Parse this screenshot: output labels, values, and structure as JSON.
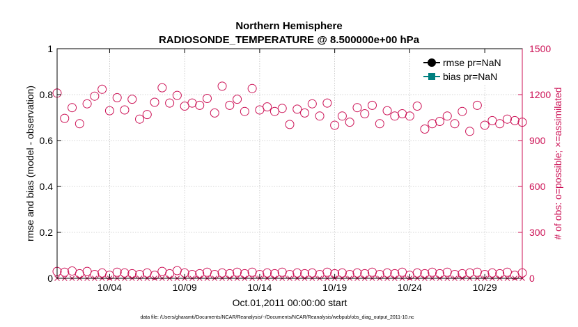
{
  "chart_data": {
    "type": "scatter",
    "title": "Northern Hemisphere",
    "subtitle": "RADIOSONDE_TEMPERATURE @ 8.500000e+00 hPa",
    "xlabel": "Oct.01,2011 00:00:00 start",
    "ylabel_left": "rmse and bias (model - observation)",
    "ylabel_right": "# of obs: o=possible; ×=assimilated",
    "footnote": "data file: /Users/gharamti/Documents/NCAR/Reanalysis/~/Documents/NCAR/Reanalysis/webpub/obs_diag_output_2011-10.nc",
    "x_range": [
      0.5,
      31.5
    ],
    "x_ticks": [
      {
        "day": 4,
        "label": "10/04"
      },
      {
        "day": 9,
        "label": "10/09"
      },
      {
        "day": 14,
        "label": "10/14"
      },
      {
        "day": 19,
        "label": "10/19"
      },
      {
        "day": 24,
        "label": "10/24"
      },
      {
        "day": 29,
        "label": "10/29"
      }
    ],
    "ylim_left": [
      0,
      1
    ],
    "yticks_left": [
      "0",
      "0.2",
      "0.4",
      "0.6",
      "0.8",
      "1"
    ],
    "ylim_right": [
      0,
      1500
    ],
    "yticks_right": [
      "0",
      "300",
      "600",
      "900",
      "1200",
      "1500"
    ],
    "grid": true,
    "legend_position": "top-right",
    "legend": [
      {
        "label": "rmse pr=NaN",
        "color": "#000000",
        "marker": "circle"
      },
      {
        "label": "bias pr=NaN",
        "color": "#008080",
        "marker": "square"
      }
    ],
    "series": [
      {
        "name": "rmse pr=NaN",
        "axis": "left",
        "values": []
      },
      {
        "name": "bias pr=NaN",
        "axis": "left",
        "values": []
      },
      {
        "axis": "right",
        "marker": "open-circle",
        "color": "#cc1155",
        "x": [
          0.5,
          1.0,
          1.5,
          2.0,
          2.5,
          3.0,
          3.5,
          4.0,
          4.5,
          5.0,
          5.5,
          6.0,
          6.5,
          7.0,
          7.5,
          8.0,
          8.5,
          9.0,
          9.5,
          10.0,
          10.5,
          11.0,
          11.5,
          12.0,
          12.5,
          13.0,
          13.5,
          14.0,
          14.5,
          15.0,
          15.5,
          16.0,
          16.5,
          17.0,
          17.5,
          18.0,
          18.5,
          19.0,
          19.5,
          20.0,
          20.5,
          21.0,
          21.5,
          22.0,
          22.5,
          23.0,
          23.5,
          24.0,
          24.5,
          25.0,
          25.5,
          26.0,
          26.5,
          27.0,
          27.5,
          28.0,
          28.5,
          29.0,
          29.5,
          30.0,
          30.5,
          31.0,
          31.5,
          0.5,
          1.0,
          1.5,
          2.0,
          2.5,
          3.0,
          3.5,
          4.0,
          4.5,
          5.0,
          5.5,
          6.0,
          6.5,
          7.0,
          7.5,
          8.0,
          8.5,
          9.0,
          9.5,
          10.0,
          10.5,
          11.0,
          11.5,
          12.0,
          12.5,
          13.0,
          13.5,
          14.0,
          14.5,
          15.0,
          15.5,
          16.0,
          16.5,
          17.0,
          17.5,
          18.0,
          18.5,
          19.0,
          19.5,
          20.0,
          20.5,
          21.0,
          21.5,
          22.0,
          22.5,
          23.0,
          23.5,
          24.0,
          24.5,
          25.0,
          25.5,
          26.0,
          26.5,
          27.0,
          27.5,
          28.0,
          28.5,
          29.0,
          29.5,
          30.0,
          30.5,
          31.0,
          31.5
        ],
        "values": [
          1210,
          1045,
          1115,
          1010,
          1140,
          1190,
          1235,
          1095,
          1180,
          1100,
          1170,
          1040,
          1070,
          1150,
          1245,
          1145,
          1195,
          1125,
          1145,
          1130,
          1175,
          1080,
          1255,
          1130,
          1170,
          1090,
          1240,
          1100,
          1120,
          1090,
          1110,
          1005,
          1105,
          1080,
          1140,
          1060,
          1145,
          1000,
          1060,
          1020,
          1115,
          1075,
          1130,
          1010,
          1095,
          1060,
          1075,
          1060,
          1125,
          975,
          1010,
          1025,
          1060,
          1010,
          1090,
          960,
          1130,
          1000,
          1030,
          1010,
          1040,
          1030,
          1020,
          45,
          40,
          48,
          30,
          45,
          25,
          35,
          20,
          40,
          35,
          30,
          25,
          35,
          20,
          45,
          30,
          50,
          35,
          25,
          30,
          40,
          25,
          35,
          30,
          40,
          30,
          40,
          25,
          35,
          30,
          40,
          25,
          35,
          30,
          35,
          25,
          40,
          30,
          35,
          25,
          35,
          30,
          40,
          25,
          35,
          30,
          40,
          20,
          35,
          30,
          40,
          30,
          40,
          25,
          30,
          35,
          40,
          25,
          35,
          30,
          40,
          20,
          35
        ]
      },
      {
        "axis": "right",
        "marker": "x",
        "color": "#cc1155",
        "x": [
          0.5,
          1.0,
          1.5,
          2.0,
          2.5,
          3.0,
          3.5,
          4.0,
          4.5,
          5.0,
          5.5,
          6.0,
          6.5,
          7.0,
          7.5,
          8.0,
          8.5,
          9.0,
          9.5,
          10.0,
          10.5,
          11.0,
          11.5,
          12.0,
          12.5,
          13.0,
          13.5,
          14.0,
          14.5,
          15.0,
          15.5,
          16.0,
          16.5,
          17.0,
          17.5,
          18.0,
          18.5,
          19.0,
          19.5,
          20.0,
          20.5,
          21.0,
          21.5,
          22.0,
          22.5,
          23.0,
          23.5,
          24.0,
          24.5,
          25.0,
          25.5,
          26.0,
          26.5,
          27.0,
          27.5,
          28.0,
          28.5,
          29.0,
          29.5,
          30.0,
          30.5,
          31.0,
          31.5
        ],
        "values": [
          0,
          0,
          0,
          0,
          0,
          0,
          0,
          0,
          0,
          0,
          0,
          0,
          0,
          0,
          0,
          0,
          0,
          0,
          0,
          0,
          0,
          0,
          0,
          0,
          0,
          0,
          0,
          0,
          0,
          0,
          0,
          0,
          0,
          0,
          0,
          0,
          0,
          0,
          0,
          0,
          0,
          0,
          0,
          0,
          0,
          0,
          0,
          0,
          0,
          0,
          0,
          0,
          0,
          0,
          0,
          0,
          0,
          0,
          0,
          0,
          0,
          0,
          0
        ]
      }
    ]
  }
}
